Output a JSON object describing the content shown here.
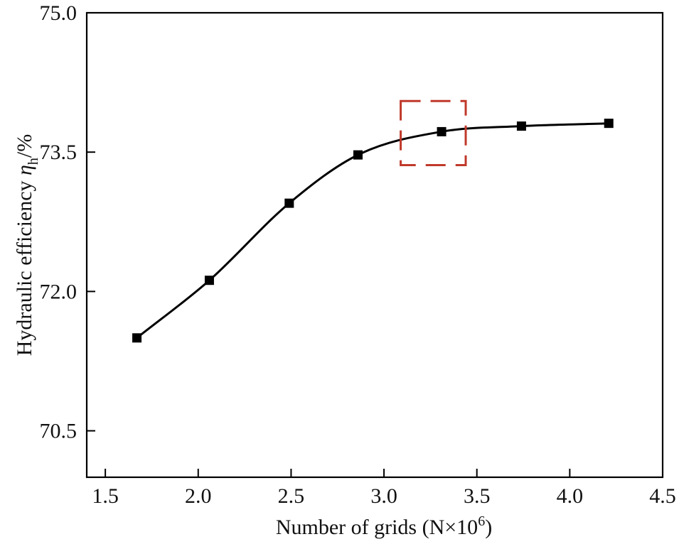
{
  "chart_data": {
    "type": "line",
    "title": "",
    "xlabel": "Number of grids (N×10",
    "xlabel_sup": "6",
    "xlabel_close": ")",
    "ylabel": "Hydraulic efficiency ",
    "ylabel_symbol": "η",
    "ylabel_sub": "h",
    "ylabel_unit": "/%",
    "xlim": [
      1.4,
      4.5
    ],
    "ylim": [
      70.0,
      75.0
    ],
    "xticks": [
      1.5,
      2.0,
      2.5,
      3.0,
      3.5,
      4.0,
      4.5
    ],
    "xtick_labels": [
      "1.5",
      "2.0",
      "2.5",
      "3.0",
      "3.5",
      "4.0",
      "4.5"
    ],
    "yticks": [
      70.5,
      72.0,
      73.5,
      75.0
    ],
    "ytick_labels": [
      "70.5",
      "72.0",
      "73.5",
      "75.0"
    ],
    "grid": false,
    "series": [
      {
        "name": "Hydraulic efficiency",
        "x": [
          1.67,
          2.06,
          2.49,
          2.86,
          3.31,
          3.74,
          4.21
        ],
        "y": [
          71.5,
          72.12,
          72.95,
          73.47,
          73.72,
          73.78,
          73.81
        ],
        "marker": "square",
        "color": "#000000"
      }
    ],
    "annotation": {
      "type": "dashed-box",
      "color": "#c0392b",
      "x_range": [
        3.09,
        3.44
      ],
      "y_range": [
        73.36,
        74.05
      ]
    }
  }
}
